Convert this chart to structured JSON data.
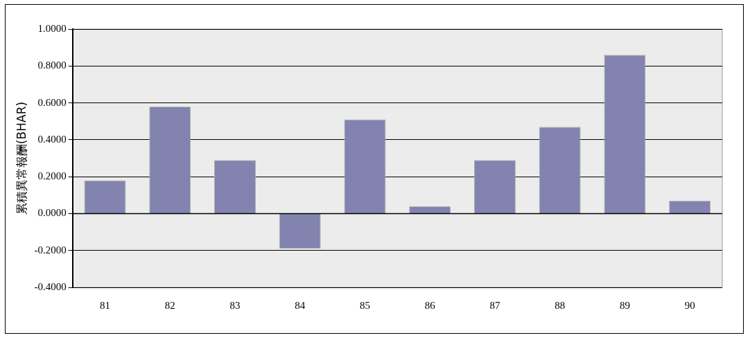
{
  "chart_data": {
    "type": "bar",
    "ylabel": "累積異常報酬(BHAR)",
    "categories": [
      "81",
      "82",
      "83",
      "84",
      "85",
      "86",
      "87",
      "88",
      "89",
      "90"
    ],
    "values": [
      0.18,
      0.58,
      0.29,
      -0.19,
      0.51,
      0.04,
      0.29,
      0.47,
      0.86,
      0.07
    ],
    "color": "#8283ae",
    "ylim": [
      -0.4,
      1.0
    ],
    "yticks": [
      {
        "value": -0.4,
        "label": "-0.4000"
      },
      {
        "value": -0.2,
        "label": "-0.2000"
      },
      {
        "value": 0,
        "label": "0.0000"
      },
      {
        "value": 0.2,
        "label": "0.2000"
      },
      {
        "value": 0.4,
        "label": "0.4000"
      },
      {
        "value": 0.6,
        "label": "0.6000"
      },
      {
        "value": 0.8,
        "label": "0.8000"
      },
      {
        "value": 1.0,
        "label": "1.0000"
      }
    ],
    "grid": "y",
    "legend": false
  }
}
